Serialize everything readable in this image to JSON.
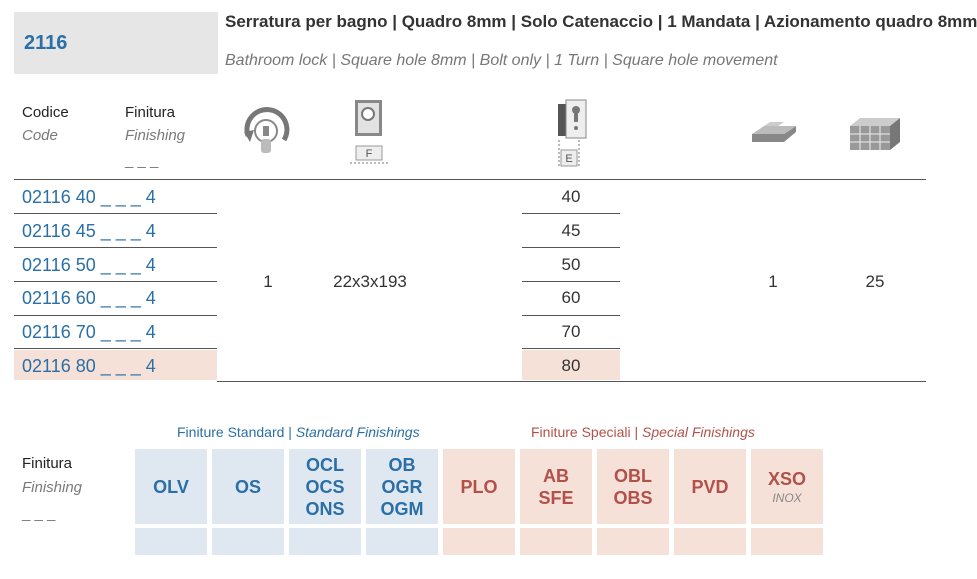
{
  "header": {
    "code": "2116",
    "title_it": "Serratura per bagno | Quadro 8mm | Solo Catenaccio | 1 Mandata | Azionamento quadro 8mm",
    "title_en": "Bathroom lock | Square hole 8mm | Bolt only | 1 Turn | Square hole movement"
  },
  "columns": {
    "code_it": "Codice",
    "code_en": "Code",
    "finish_it": "Finitura",
    "finish_en": "Finishing",
    "finish_blank": "_ _ _",
    "faceplate_label": "F",
    "backset_label": "E",
    "icons": [
      "turn-icon",
      "faceplate-icon",
      "backset-icon",
      "pack-icon",
      "box-pack-icon"
    ]
  },
  "rows": [
    {
      "code": "02116 40 _ _ _ 4",
      "backset": "40"
    },
    {
      "code": "02116 45 _ _ _ 4",
      "backset": "45"
    },
    {
      "code": "02116 50 _ _ _ 4",
      "backset": "50"
    },
    {
      "code": "02116 60 _ _ _ 4",
      "backset": "60"
    },
    {
      "code": "02116 70 _ _ _ 4",
      "backset": "70"
    },
    {
      "code": "02116 80 _ _ _ 4",
      "backset": "80"
    }
  ],
  "shared": {
    "turns": "1",
    "faceplate": "22x3x193",
    "pack": "1",
    "box": "25"
  },
  "finishes": {
    "label_it": "Finitura",
    "label_en": "Finishing",
    "label_blank": "_ _ _",
    "standard_title_it": "Finiture Standard",
    "standard_title_en": "Standard Finishings",
    "special_title_it": "Finiture Speciali",
    "special_title_en": "Special Finishings",
    "separator": "|",
    "standard": [
      {
        "lines": [
          "OLV"
        ]
      },
      {
        "lines": [
          "OS"
        ]
      },
      {
        "lines": [
          "OCL",
          "OCS",
          "ONS"
        ]
      },
      {
        "lines": [
          "OB",
          "OGR",
          "OGM"
        ]
      }
    ],
    "special": [
      {
        "lines": [
          "PLO"
        ]
      },
      {
        "lines": [
          "AB",
          "SFE"
        ]
      },
      {
        "lines": [
          "OBL",
          "OBS"
        ]
      },
      {
        "lines": [
          "PVD"
        ]
      },
      {
        "lines": [
          "XSO"
        ],
        "note": "INOX"
      }
    ]
  },
  "colors": {
    "accent_blue": "#2a6fa6",
    "accent_red": "#b1514a",
    "highlight": "#f6e1d9",
    "standard_bg": "#dfe8f1"
  }
}
